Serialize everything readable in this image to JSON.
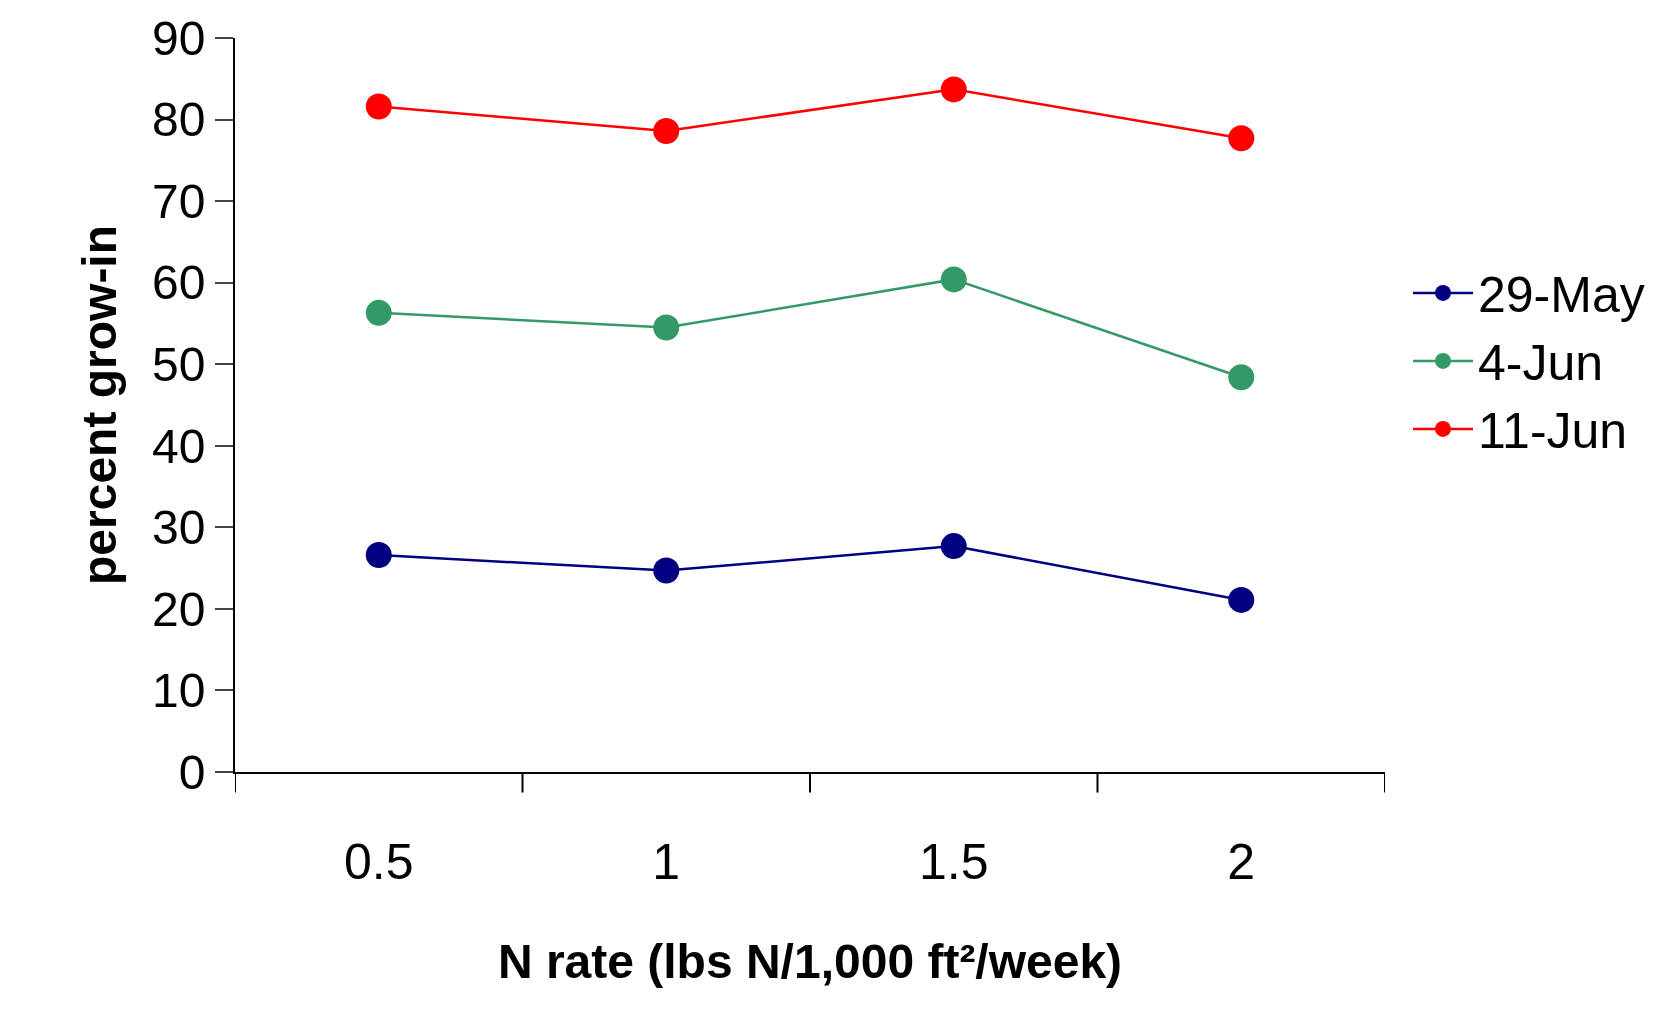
{
  "chart_data": {
    "type": "line",
    "xlabel": "N rate (lbs N/1,000 ft²/week)",
    "ylabel": "percent grow-in",
    "categories": [
      "0.5",
      "1",
      "1.5",
      "2"
    ],
    "series": [
      {
        "name": "29-May",
        "color": "#000080",
        "values": [
          26.6,
          24.7,
          27.7,
          21.1
        ]
      },
      {
        "name": "4-Jun",
        "color": "#339966",
        "values": [
          56.3,
          54.5,
          60.4,
          48.4
        ]
      },
      {
        "name": "11-Jun",
        "color": "#ff0000",
        "values": [
          81.6,
          78.6,
          83.7,
          77.7
        ]
      }
    ],
    "ylim": [
      0,
      90
    ],
    "yticks": [
      0,
      10,
      20,
      30,
      40,
      50,
      60,
      70,
      80,
      90
    ],
    "legend": "right",
    "marker": "circle",
    "line_style": "solid"
  }
}
